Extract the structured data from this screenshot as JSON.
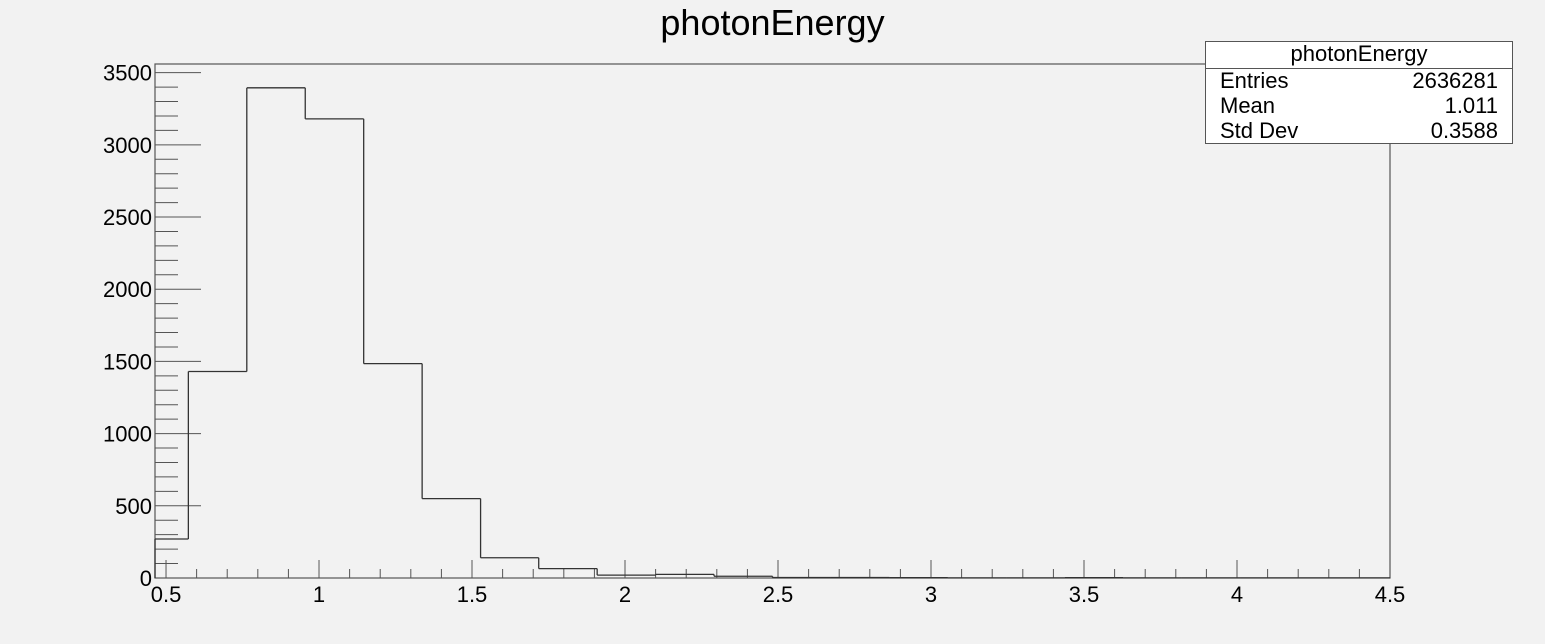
{
  "chart_data": {
    "type": "bar",
    "title": "photonEnergy",
    "xlabel": "",
    "ylabel": "",
    "xlim": [
      0.464,
      4.5
    ],
    "ylim": [
      0,
      3560
    ],
    "bin_edges": [
      0.464,
      0.573,
      0.764,
      0.955,
      1.146,
      1.337,
      1.528,
      1.718,
      1.909,
      2.1,
      2.291,
      2.482,
      2.673,
      2.864,
      3.055,
      3.246,
      3.437,
      3.628,
      3.819,
      4.01,
      4.2,
      4.5
    ],
    "values": [
      270,
      1430,
      3395,
      3180,
      1485,
      550,
      140,
      65,
      20,
      25,
      12,
      3,
      3,
      2,
      1,
      1,
      2,
      1,
      1,
      1,
      1
    ],
    "xticks": [
      "0.5",
      "1",
      "1.5",
      "2",
      "2.5",
      "3",
      "3.5",
      "4",
      "4.5"
    ],
    "yticks": [
      "0",
      "500",
      "1000",
      "1500",
      "2000",
      "2500",
      "3000",
      "3500"
    ],
    "grid": false,
    "stats": {
      "title": "photonEnergy",
      "rows": [
        {
          "label": "Entries",
          "value": "2636281"
        },
        {
          "label": "Mean",
          "value": "1.011"
        },
        {
          "label": "Std Dev",
          "value": "0.3588"
        }
      ]
    }
  }
}
